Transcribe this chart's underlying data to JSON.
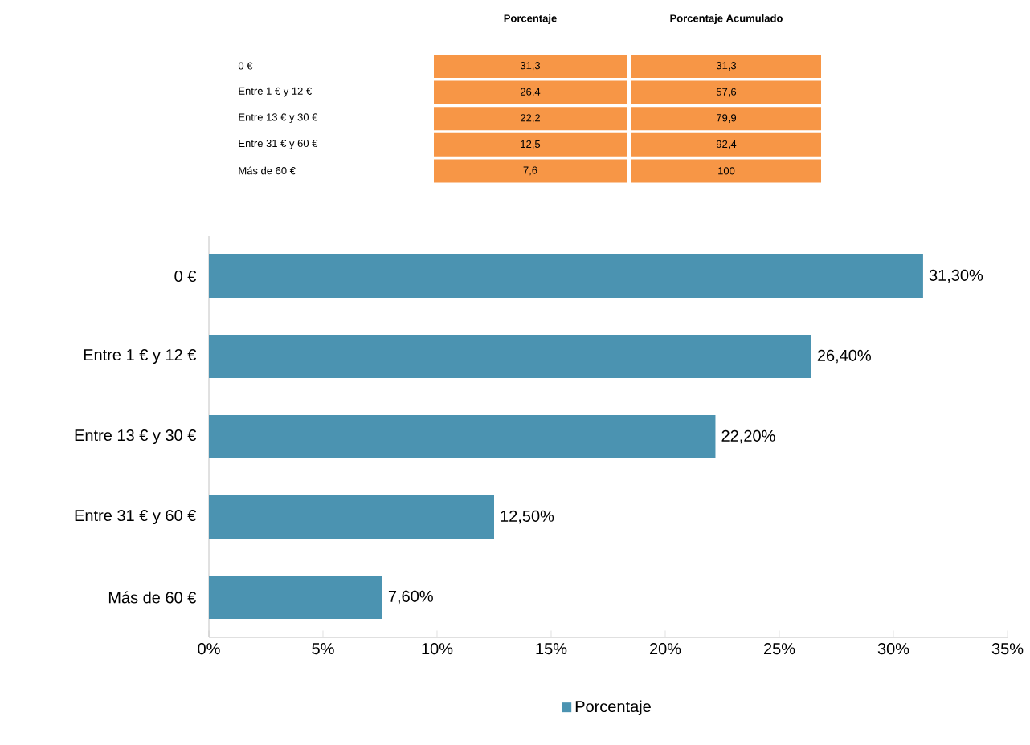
{
  "chart_data": [
    {
      "type": "other",
      "categories": [
        "0 €",
        "Entre 1 € y 12 €",
        "Entre 13 € y 30 €",
        "Entre 31 € y 60 €",
        "Más de 60 €"
      ],
      "series": [
        {
          "name": "Porcentaje",
          "color": "#f79646",
          "values": [
            31.3,
            26.4,
            22.2,
            12.5,
            7.6
          ],
          "value_labels": [
            "31,3",
            "26,4",
            "22,2",
            "12,5",
            "7,6"
          ]
        },
        {
          "name": "Porcentaje Acumulado",
          "color": "#f79646",
          "values": [
            31.3,
            57.6,
            79.9,
            92.4,
            100
          ],
          "value_labels": [
            "31,3",
            "57,6",
            "79,9",
            "92,4",
            "100"
          ]
        }
      ]
    },
    {
      "type": "bar",
      "orientation": "horizontal",
      "categories": [
        "0 €",
        "Entre 1 € y 12 €",
        "Entre 13 € y 30 €",
        "Entre 31 € y 60 €",
        "Más de 60 €"
      ],
      "series": [
        {
          "name": "Porcentaje",
          "color": "#4b93b1",
          "values": [
            31.3,
            26.4,
            22.2,
            12.5,
            7.6
          ],
          "value_labels": [
            "31,30%",
            "26,40%",
            "22,20%",
            "12,50%",
            "7,60%"
          ]
        }
      ],
      "xlim": [
        0,
        35
      ],
      "xticks": [
        {
          "value": 0,
          "label": "0%"
        },
        {
          "value": 5,
          "label": "5%"
        },
        {
          "value": 10,
          "label": "10%"
        },
        {
          "value": 15,
          "label": "15%"
        },
        {
          "value": 20,
          "label": "20%"
        },
        {
          "value": 25,
          "label": "25%"
        },
        {
          "value": 30,
          "label": "30%"
        },
        {
          "value": 35,
          "label": "35%"
        }
      ],
      "legend": "bottom",
      "grid": false
    }
  ]
}
